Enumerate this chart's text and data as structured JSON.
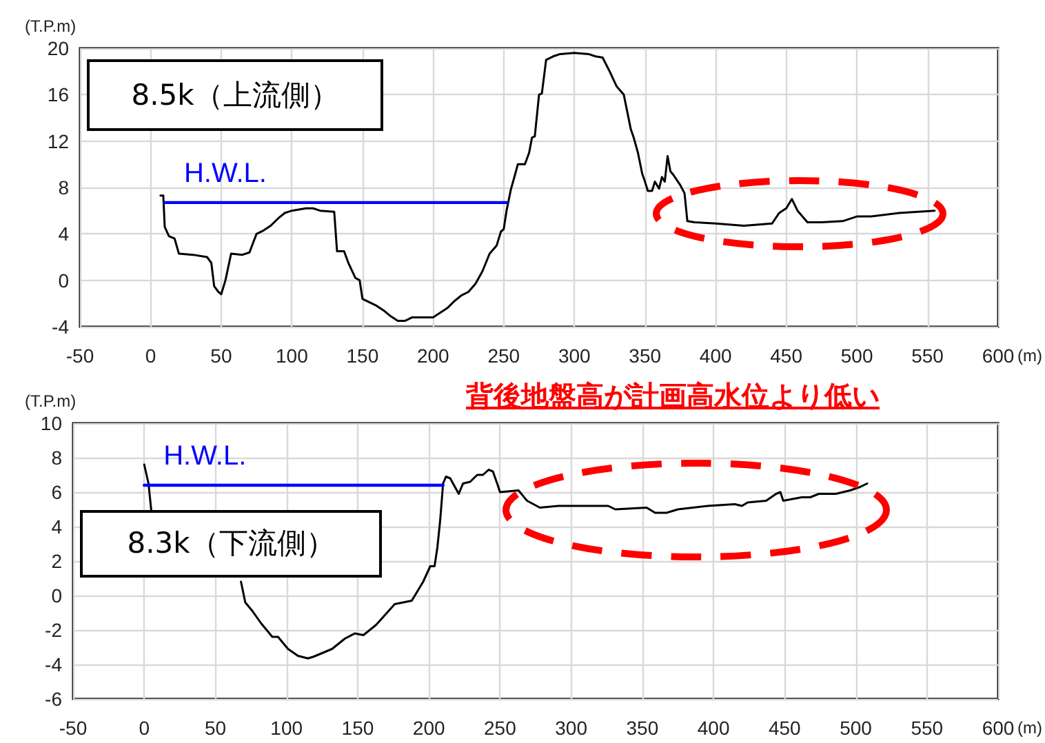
{
  "chart_data": [
    {
      "type": "line",
      "annotations": [
        "8.5k（上流側）"
      ],
      "xlabel": "(m)",
      "ylabel": "(T.P.m)",
      "xlim": [
        -50,
        600
      ],
      "xticks": [
        -50,
        0,
        50,
        100,
        150,
        200,
        250,
        300,
        350,
        400,
        450,
        500,
        550,
        600
      ],
      "ylim": [
        -4,
        20
      ],
      "yticks": [
        -4,
        0,
        4,
        8,
        12,
        16,
        20
      ],
      "grid": true,
      "legend": false,
      "marker": "none",
      "line_style": "solid",
      "series": [
        {
          "color": "#000000",
          "x": [
            7,
            9,
            10,
            13,
            17,
            20,
            30,
            40,
            43,
            45,
            48,
            50,
            53,
            57,
            65,
            70,
            75,
            80,
            85,
            90,
            95,
            100,
            110,
            115,
            120,
            130,
            132,
            137,
            140,
            145,
            148,
            150,
            155,
            160,
            165,
            170,
            175,
            180,
            185,
            200,
            205,
            210,
            215,
            220,
            225,
            230,
            235,
            240,
            245,
            248,
            250,
            252,
            255,
            258,
            260,
            265,
            268,
            270,
            272,
            275,
            277,
            280,
            285,
            290,
            300,
            310,
            315,
            320,
            325,
            330,
            335,
            340,
            342,
            345,
            348,
            350,
            352,
            355,
            357,
            360,
            362,
            364,
            366,
            368,
            370,
            375,
            378,
            380,
            385,
            400,
            420,
            440,
            445,
            450,
            454,
            458,
            465,
            475,
            490,
            500,
            510,
            530,
            555
          ],
          "values": [
            7.3,
            7.3,
            4.6,
            3.8,
            3.6,
            2.3,
            2.2,
            2,
            1.5,
            -0.5,
            -1,
            -1.2,
            0,
            2.3,
            2.2,
            2.4,
            4,
            4.3,
            4.7,
            5.3,
            5.8,
            6,
            6.2,
            6.2,
            6,
            5.9,
            2.5,
            2.5,
            1.5,
            0.2,
            0,
            -1.6,
            -1.9,
            -2.2,
            -2.6,
            -3.1,
            -3.5,
            -3.5,
            -3.2,
            -3.2,
            -2.8,
            -2.4,
            -1.8,
            -1.3,
            -1,
            -0.3,
            0.8,
            2.3,
            3,
            4.2,
            4.4,
            6,
            7.8,
            9.1,
            10,
            10,
            11,
            12.3,
            12.4,
            16,
            16.1,
            19,
            19.3,
            19.5,
            19.6,
            19.5,
            19.3,
            19.2,
            18,
            16.7,
            16,
            13,
            12.3,
            11,
            9.2,
            8.5,
            7.7,
            7.7,
            8.5,
            7.9,
            8.9,
            8.5,
            10.7,
            9.4,
            9.1,
            8.2,
            7.5,
            5.1,
            5,
            4.9,
            4.7,
            4.9,
            5.8,
            6.2,
            7,
            6,
            5,
            5,
            5.1,
            5.5,
            5.5,
            5.8,
            6
          ]
        },
        {
          "name": "H.W.L.",
          "color": "#0000ff",
          "x": [
            10,
            252
          ],
          "values": [
            6.7,
            6.7
          ]
        }
      ]
    },
    {
      "type": "line",
      "annotations": [
        "8.3k（下流側）",
        "背後地盤高が計画高水位より低い"
      ],
      "xlabel": "(m)",
      "ylabel": "(T.P.m)",
      "xlim": [
        -50,
        600
      ],
      "xticks": [
        -50,
        0,
        50,
        100,
        150,
        200,
        250,
        300,
        350,
        400,
        450,
        500,
        550,
        600
      ],
      "ylim": [
        -6,
        10
      ],
      "yticks": [
        -6,
        -4,
        -2,
        0,
        2,
        4,
        6,
        8,
        10
      ],
      "grid": true,
      "legend": false,
      "marker": "none",
      "line_style": "solid",
      "series": [
        {
          "color": "#000000",
          "x": [
            0,
            3,
            5,
            35,
            68,
            71,
            76,
            82,
            90,
            94,
            101,
            108,
            115,
            119,
            132,
            141,
            148,
            154,
            163,
            176,
            188,
            196,
            201,
            204,
            206,
            208,
            210,
            212,
            215,
            221,
            224,
            229,
            234,
            238,
            242,
            245,
            248,
            250,
            263,
            269,
            278,
            291,
            326,
            331,
            353,
            359,
            367,
            375,
            396,
            415,
            420,
            424,
            437,
            444,
            447,
            449,
            462,
            468,
            474,
            486,
            496,
            503,
            508
          ],
          "values": [
            7.6,
            6.5,
            4.9,
            null,
            0.8,
            -0.4,
            -0.9,
            -1.6,
            -2.4,
            -2.4,
            -3.1,
            -3.5,
            -3.65,
            -3.55,
            -3.1,
            -2.5,
            -2.2,
            -2.3,
            -1.7,
            -0.5,
            -0.3,
            0.8,
            1.7,
            1.7,
            2.8,
            4.4,
            6.5,
            6.9,
            6.8,
            5.9,
            6.5,
            6.6,
            7,
            7,
            7.3,
            7.2,
            6.5,
            6,
            6.1,
            5.5,
            5.1,
            5.2,
            5.2,
            5,
            5.1,
            4.8,
            4.8,
            5,
            5.2,
            5.3,
            5.2,
            5.4,
            5.5,
            5.9,
            6,
            5.5,
            5.7,
            5.7,
            5.9,
            5.9,
            6.1,
            6.3,
            6.5
          ]
        },
        {
          "name": "H.W.L.",
          "color": "#0000ff",
          "x": [
            0,
            210
          ],
          "values": [
            6.4,
            6.4
          ]
        }
      ]
    }
  ]
}
